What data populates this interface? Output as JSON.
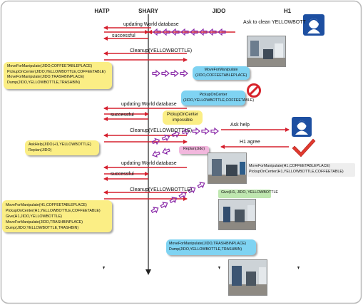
{
  "lanes": {
    "hatp": "HATP",
    "shary": "SHARY",
    "jido": "JIDO",
    "h1": "H1"
  },
  "messages": {
    "ask_clean": "Ask to clean YELLOWBOTT",
    "updating1": "updating World database",
    "successful1": "successful",
    "cleanup1": "Cleanup(YELLOWBOTTLE)",
    "updating2": "updating World database",
    "successful2": "successful",
    "cleanup2": "Cleanup(YELLOWBOTTLE)",
    "ask_help": "Ask help",
    "h1_agree": "H1 agree",
    "updating3": "updating World database",
    "successful3": "successful",
    "cleanup3": "Cleanup(YELLOWBOTTLE)"
  },
  "impossible_note": {
    "line1": "PickupOnCenter",
    "line2": "impossible"
  },
  "plan1": [
    "MoveForManipulate(JIDO,COFFEETABLEPLACE)",
    "PickupOnCenter(JIDO,YELLOWBOTTLE,COFFEETABLE)",
    "MoveForManipulate(JIDO,TRASHBINPLACE)",
    "Dump(JIDO,YELLOWBOTTLE,TRASHBIN)"
  ],
  "jido_move1": [
    "MoveForManipulate",
    "(JIDO,COFFEETABLEPLACE)"
  ],
  "pickup_fail": [
    "PickupOnCenter",
    "(JIDO,YELLOWBOTTLE,COFFEETABLE)"
  ],
  "plan2": [
    "AskHelp(JIDO,H1,YELLOWBOTTLE)",
    "Replan(JIDO)"
  ],
  "replan_jido": "Replan(Jido)",
  "h1_actions": [
    "MoveForManipulate(H1,COFFEETABLEPLACE)",
    "PickupOnCenter(H1,YELLOWBOTTLE,COFFEETABLE)"
  ],
  "give_note": "Give(H1, JIDO, YELLOWBOTTLE",
  "plan3": [
    "MoveForManipulate(H1,COFFEETABLEPLACE)",
    "PickupOnCenter(H1,YELLOWBOTTLE,COFFEETABLE)",
    "Give(H1,JIDO,YELLOWBOTTLE)",
    "MoveForManipulate(JIDO,TRASHBINPLACE)",
    "Dump(JIDO,YELLOWBOTTLE,TRASHBIN)"
  ],
  "jido_final": [
    "MoveForManipulate(JIDO,TRASHBINPLACE)",
    "Dump(JIDO,YELLOWBOTTLE,TRASHBIN)"
  ],
  "colors": {
    "arrow_red": "#d6202f",
    "arrow_purple": "#8a2aa8",
    "stop_red": "#d7232b",
    "check_red": "#e03a2e",
    "note_yellow": "#fbee85",
    "note_blue": "#7fd3f2",
    "note_green": "#bfe7b0",
    "note_pink": "#f2b7dd"
  },
  "icons": [
    "person-icon",
    "stop-sign-icon",
    "checkmark-icon"
  ]
}
